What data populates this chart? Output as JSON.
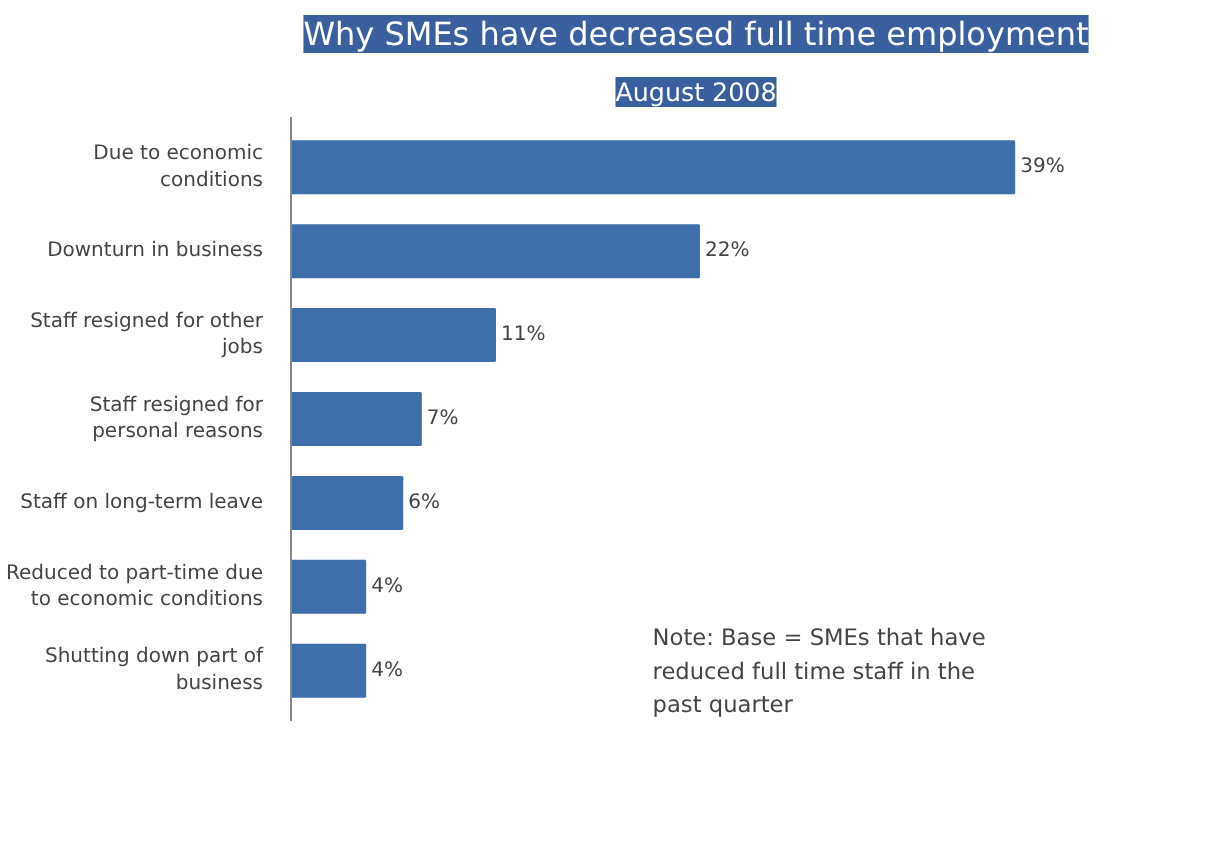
{
  "chart_data": {
    "type": "bar",
    "orientation": "horizontal",
    "title": "Why SMEs have decreased full time employment",
    "subtitle": "August 2008",
    "categories": [
      "Due to economic conditions",
      "Downturn in business",
      "Staff resigned for other jobs",
      "Staff resigned for personal reasons",
      "Staff on long-term leave",
      "Reduced to part-time due to economic conditions",
      "Shutting down part of business"
    ],
    "values": [
      39,
      22,
      11,
      7,
      6,
      4,
      4
    ],
    "value_labels": [
      "39%",
      "22%",
      "11%",
      "7%",
      "6%",
      "4%",
      "4%"
    ],
    "color": "#3f6faa",
    "annotations": [
      "Note: Base = SMEs that have reduced full time staff in the past quarter"
    ]
  }
}
